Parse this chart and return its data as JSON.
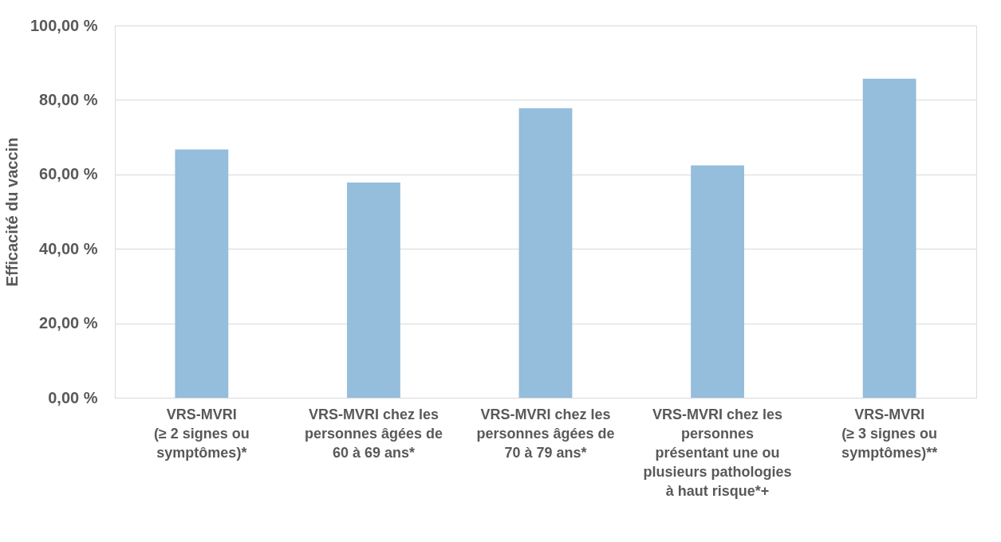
{
  "chart_data": {
    "type": "bar",
    "ylabel": "Efficacité du vaccin",
    "categories": [
      "VRS-MVRI\n(≥ 2 signes ou\nsymptômes)*",
      "VRS-MVRI chez les\npersonnes âgées de\n60 à 69 ans*",
      "VRS-MVRI chez les\npersonnes âgées de\n70 à 79 ans*",
      "VRS-MVRI chez les\npersonnes\nprésentant une ou\nplusieurs pathologies\nà haut risque*+",
      "VRS-MVRI\n(≥ 3 signes ou\nsymptômes)**"
    ],
    "values": [
      66.7,
      57.8,
      77.8,
      62.4,
      85.7
    ],
    "color": "#95bddc",
    "ylim": [
      0,
      100
    ],
    "yticks": [
      {
        "value": 0,
        "label": "0,00 %"
      },
      {
        "value": 20,
        "label": "20,00 %"
      },
      {
        "value": 40,
        "label": "40,00 %"
      },
      {
        "value": 60,
        "label": "60,00 %"
      },
      {
        "value": 80,
        "label": "80,00 %"
      },
      {
        "value": 100,
        "label": "100,00 %"
      }
    ],
    "grid": "y"
  }
}
